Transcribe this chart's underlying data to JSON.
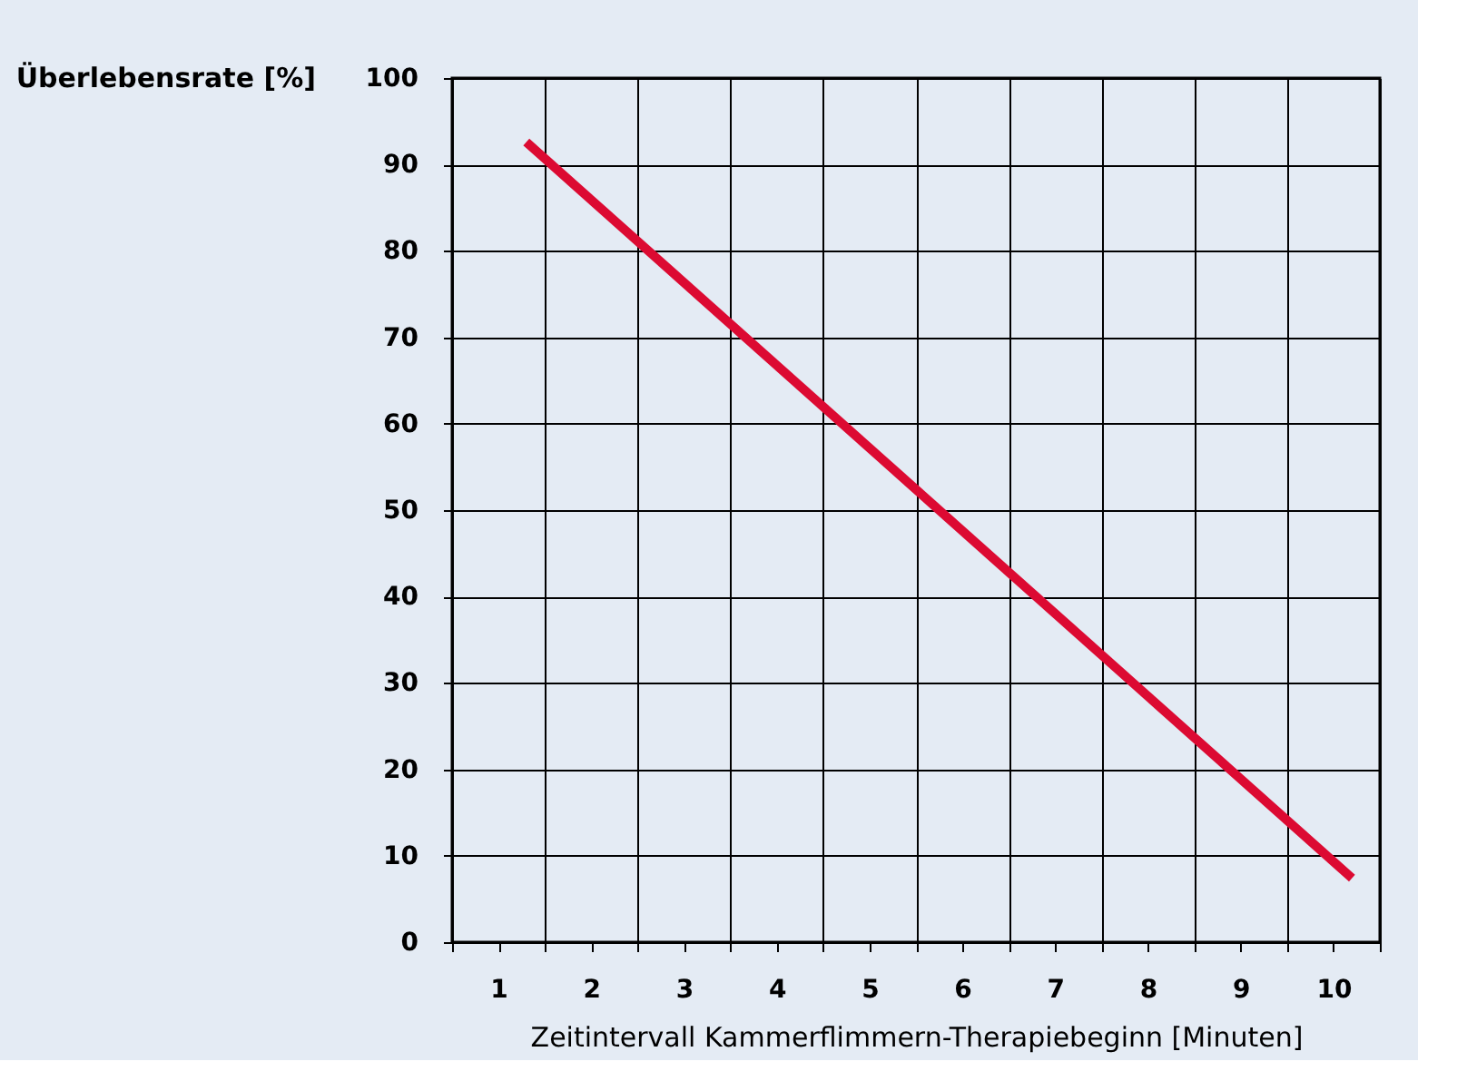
{
  "chart_data": {
    "type": "line",
    "ylabel": "Überlebensrate [%]",
    "xlabel": "Zeitintervall Kammerflimmern-Therapiebeginn [Minuten]",
    "x": [
      1.3,
      10.2
    ],
    "series": [
      {
        "color": "#dc0a32",
        "values": [
          92.6,
          7.4
        ]
      }
    ],
    "xlim": [
      0.5,
      10.5
    ],
    "xticks": [
      {
        "value": 0.5,
        "label": null
      },
      1,
      {
        "value": 1.5,
        "label": null
      },
      2,
      {
        "value": 2.5,
        "label": null
      },
      3,
      {
        "value": 3.5,
        "label": null
      },
      4,
      {
        "value": 4.5,
        "label": null
      },
      5,
      {
        "value": 5.5,
        "label": null
      },
      6,
      {
        "value": 6.5,
        "label": null
      },
      7,
      {
        "value": 7.5,
        "label": null
      },
      8,
      {
        "value": 8.5,
        "label": null
      },
      9,
      {
        "value": 9.5,
        "label": null
      },
      10,
      {
        "value": 10.5,
        "label": null
      }
    ],
    "ylim": [
      0,
      100
    ],
    "yticks": [
      0,
      10,
      20,
      30,
      40,
      50,
      60,
      70,
      80,
      90,
      100
    ],
    "grid": true,
    "marker": "none",
    "line_style": "solid"
  }
}
